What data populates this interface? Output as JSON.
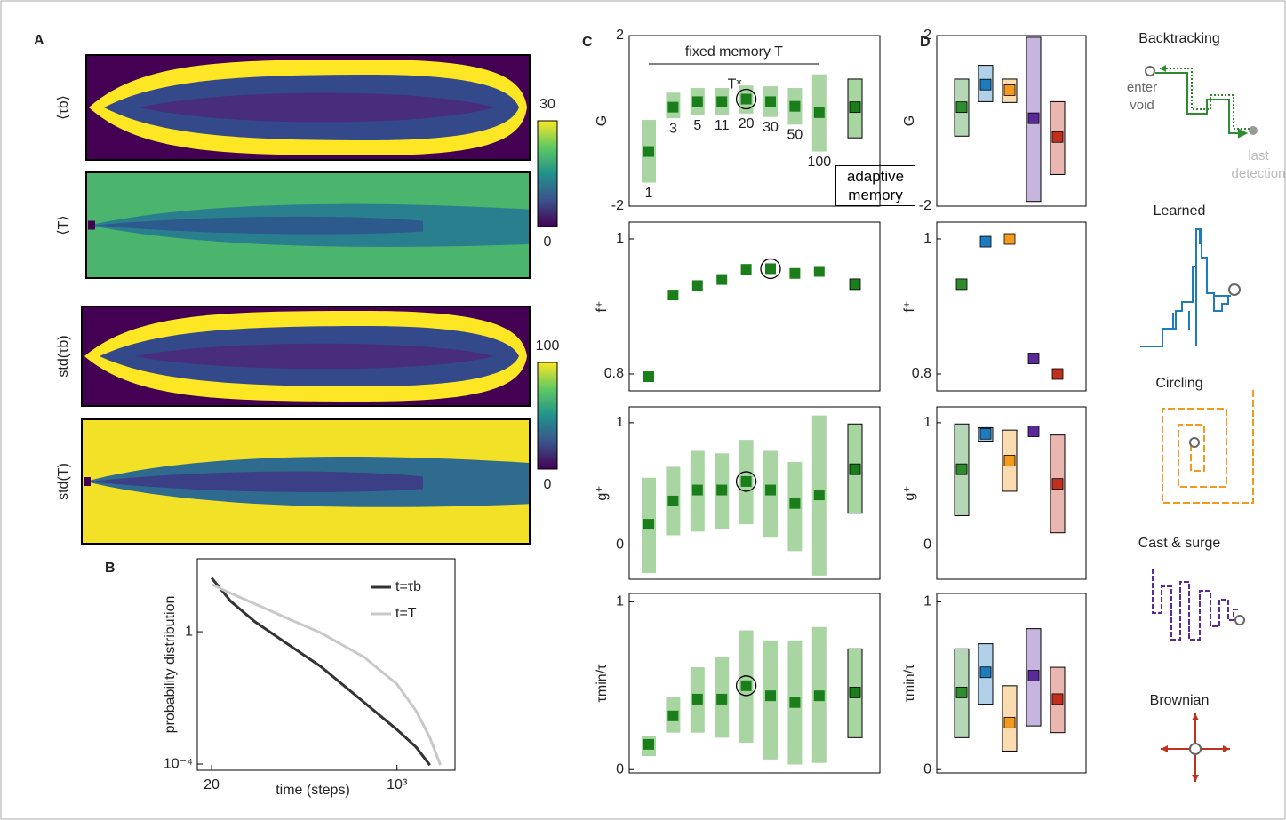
{
  "chart_data": [
    {
      "type": "heatmap",
      "panel_label": "A",
      "panels": [
        {
          "label": "⟨τb⟩"
        },
        {
          "label": "⟨T⟩"
        },
        {
          "label": "std(τb)"
        },
        {
          "label": "std(T)"
        }
      ],
      "colorbars": [
        {
          "clim": [
            0,
            30
          ],
          "ticks": [
            0,
            30
          ]
        },
        {
          "clim": [
            0,
            100
          ],
          "ticks": [
            0,
            100
          ]
        }
      ]
    },
    {
      "type": "line",
      "panel_label": "B",
      "xlabel": "time (steps)",
      "ylabel": "probability distribution",
      "log_x": true,
      "log_y": true,
      "xlim": [
        14.8,
        3400
      ],
      "ylim": [
        6.5e-05,
        160
      ],
      "xticks": [
        20,
        {
          "value": 1000,
          "label": "10³"
        }
      ],
      "yticks": [
        1,
        {
          "value": 0.0001,
          "label": "10⁻⁴"
        }
      ],
      "x": [
        20,
        30,
        50,
        100,
        200,
        500,
        1000,
        1500,
        2000,
        2500
      ],
      "series": [
        {
          "name": "t=τb",
          "color": "#333333",
          "values": [
            42,
            8.3,
            2.0,
            0.42,
            0.089,
            0.0073,
            0.0011,
            0.00032,
            9.3e-05,
            null
          ]
        },
        {
          "name": "t=T",
          "color": "#c8c8c8",
          "values": [
            27,
            14.5,
            6.9,
            2.5,
            0.93,
            0.17,
            0.026,
            0.004,
            0.00063,
            9.3e-05
          ]
        }
      ],
      "legend": "upper right"
    },
    {
      "type": "errorbar",
      "panel_label": "C",
      "annotation": "fixed memory T",
      "optimum_label": "T*",
      "color": "#1a7f1a",
      "band_color": "#a8d5a2",
      "categories": [
        "1",
        "3",
        "5",
        "11",
        "20",
        "30",
        "50",
        "100",
        "adaptive memory"
      ],
      "panels": [
        {
          "ylabel": "G",
          "ylim": [
            -2,
            2
          ],
          "yticks": [
            -2,
            2
          ],
          "highlight": 4,
          "values": [
            -0.72,
            0.32,
            0.45,
            0.45,
            0.51,
            0.45,
            0.34,
            0.19,
            0.32
          ],
          "lower": [
            -1.45,
            0.06,
            0.13,
            0.13,
            0.17,
            0.09,
            -0.09,
            -0.72,
            -0.4
          ],
          "upper": [
            0.02,
            0.66,
            0.77,
            0.77,
            0.83,
            0.81,
            0.77,
            1.09,
            0.98
          ]
        },
        {
          "ylabel": "f⁺",
          "ylim": [
            0.775,
            1.025
          ],
          "yticks": [
            0.8,
            1
          ],
          "highlight": 5,
          "values": [
            0.796,
            0.917,
            0.931,
            0.94,
            0.955,
            0.956,
            0.949,
            0.952,
            0.933
          ]
        },
        {
          "ylabel": "g⁺",
          "ylim": [
            -0.28,
            1.13
          ],
          "yticks": [
            0,
            1
          ],
          "highlight": 4,
          "values": [
            0.17,
            0.36,
            0.45,
            0.45,
            0.52,
            0.45,
            0.34,
            0.41,
            0.62
          ],
          "lower": [
            -0.23,
            0.08,
            0.11,
            0.13,
            0.17,
            0.06,
            -0.05,
            -0.25,
            0.26
          ],
          "upper": [
            0.55,
            0.64,
            0.77,
            0.75,
            0.86,
            0.77,
            0.68,
            1.06,
            0.99
          ]
        },
        {
          "ylabel": "τmin/τ",
          "ylim": [
            -0.02,
            1.05
          ],
          "yticks": [
            0,
            1
          ],
          "highlight": 4,
          "values": [
            0.15,
            0.32,
            0.42,
            0.42,
            0.5,
            0.44,
            0.4,
            0.44,
            0.46
          ],
          "lower": [
            0.08,
            0.22,
            0.22,
            0.19,
            0.16,
            0.06,
            0.03,
            0.04,
            0.19
          ],
          "upper": [
            0.2,
            0.43,
            0.61,
            0.67,
            0.83,
            0.77,
            0.77,
            0.85,
            0.72
          ]
        }
      ]
    },
    {
      "type": "errorbar",
      "panel_label": "D",
      "categories": [
        "Backtracking",
        "Learned",
        "Circling",
        "Cast & surge",
        "Brownian"
      ],
      "colors": [
        "#2e8b2e",
        "#1f7bbf",
        "#f39a1e",
        "#5b2a9a",
        "#c0301e"
      ],
      "notes": [
        "enter void",
        "last detection"
      ],
      "panels": [
        {
          "ylabel": "G",
          "ylim": [
            -2,
            2
          ],
          "yticks": [
            -2,
            2
          ],
          "values": [
            0.32,
            0.85,
            0.72,
            0.06,
            -0.38
          ],
          "lower": [
            -0.36,
            0.45,
            0.43,
            -1.89,
            -1.26
          ],
          "upper": [
            0.98,
            1.3,
            0.98,
            1.96,
            0.45
          ]
        },
        {
          "ylabel": "f⁺",
          "ylim": [
            0.775,
            1.025
          ],
          "yticks": [
            0.8,
            1
          ],
          "values": [
            0.933,
            0.996,
            1.0,
            0.823,
            0.8
          ]
        },
        {
          "ylabel": "g⁺",
          "ylim": [
            -0.28,
            1.13
          ],
          "yticks": [
            0,
            1
          ],
          "values": [
            0.62,
            0.91,
            0.69,
            0.93,
            0.5
          ],
          "lower": [
            0.24,
            0.85,
            0.44,
            null,
            0.1
          ],
          "upper": [
            0.99,
            0.96,
            0.94,
            null,
            0.9
          ]
        },
        {
          "ylabel": "τmin/τ",
          "ylim": [
            -0.02,
            1.05
          ],
          "yticks": [
            0,
            1
          ],
          "values": [
            0.46,
            0.58,
            0.28,
            0.56,
            0.42
          ],
          "lower": [
            0.19,
            0.39,
            0.11,
            0.26,
            0.22
          ],
          "upper": [
            0.72,
            0.75,
            0.5,
            0.84,
            0.61
          ]
        }
      ]
    }
  ]
}
